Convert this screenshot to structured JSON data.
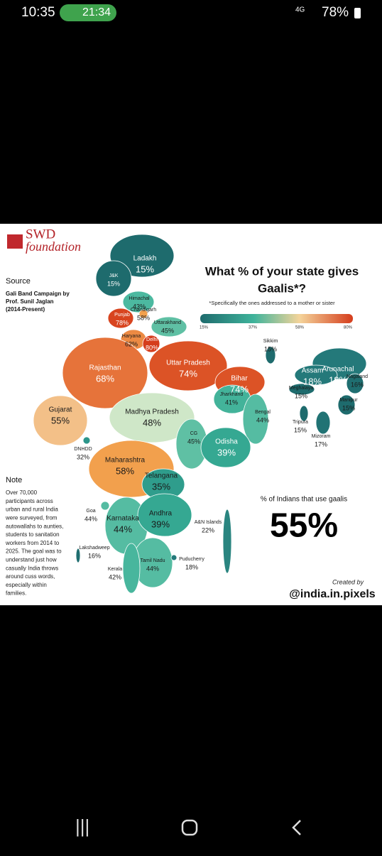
{
  "status_bar": {
    "time": "10:35",
    "call_timer": "21:34",
    "network": "4G",
    "battery": "78%"
  },
  "logo": {
    "name": "SWD",
    "subtitle": "foundation"
  },
  "source": {
    "heading": "Source",
    "lines": [
      "Gali Band Campaign by",
      "Prof. Sunil Jaglan",
      "(2014-Present)"
    ]
  },
  "title_lines": [
    "What % of your state gives",
    "Gaalis*?"
  ],
  "subtitle": "*Specifically the ones addressed to a mother or sister",
  "legend_ticks": [
    "15%",
    "37%",
    "58%",
    "80%"
  ],
  "regions": [
    {
      "name": "Ladakh",
      "value": "15%",
      "color": "#1e6b6d"
    },
    {
      "name": "J&K",
      "value": "15%",
      "color": "#1e6b6d"
    },
    {
      "name": "Himachal",
      "value": "43%",
      "color": "#4cb9a0"
    },
    {
      "name": "Chandigarh",
      "value": "58%",
      "color": "#f2a04d"
    },
    {
      "name": "Punjab",
      "value": "78%",
      "color": "#d8441f"
    },
    {
      "name": "Uttarakhand",
      "value": "45%",
      "color": "#5fc0a4"
    },
    {
      "name": "Haryana",
      "value": "62%",
      "color": "#ec8a43"
    },
    {
      "name": "Delhi",
      "value": "80%",
      "color": "#d53d1c"
    },
    {
      "name": "Rajasthan",
      "value": "68%",
      "color": "#e6733a"
    },
    {
      "name": "Uttar Pradesh",
      "value": "74%",
      "color": "#dc5326"
    },
    {
      "name": "Bihar",
      "value": "74%",
      "color": "#dc5326"
    },
    {
      "name": "Sikkim",
      "value": "15%",
      "color": "#1e6b6d"
    },
    {
      "name": "Arunachal",
      "value": "18%",
      "color": "#24797a"
    },
    {
      "name": "Assam",
      "value": "18%",
      "color": "#24797a"
    },
    {
      "name": "Nagaland",
      "value": "16%",
      "color": "#1f6e70"
    },
    {
      "name": "Meghalaya",
      "value": "15%",
      "color": "#1e6b6d"
    },
    {
      "name": "Manipur",
      "value": "15%",
      "color": "#1e6b6d"
    },
    {
      "name": "Tripura",
      "value": "15%",
      "color": "#1e6b6d"
    },
    {
      "name": "Mizoram",
      "value": "17%",
      "color": "#217374"
    },
    {
      "name": "Gujarat",
      "value": "55%",
      "color": "#f3c088"
    },
    {
      "name": "Madhya Pradesh",
      "value": "48%",
      "color": "#cfe7c8"
    },
    {
      "name": "Jharkhand",
      "value": "41%",
      "color": "#43b39a"
    },
    {
      "name": "Bengal",
      "value": "44%",
      "color": "#55bca2"
    },
    {
      "name": "CG",
      "value": "45%",
      "color": "#5fc0a4"
    },
    {
      "name": "Odisha",
      "value": "39%",
      "color": "#35a892"
    },
    {
      "name": "DNHDD",
      "value": "32%",
      "color": "#2b958a"
    },
    {
      "name": "Maharashtra",
      "value": "58%",
      "color": "#f2a04d"
    },
    {
      "name": "Telangana",
      "value": "35%",
      "color": "#2f9d8c"
    },
    {
      "name": "Goa",
      "value": "44%",
      "color": "#55bca2"
    },
    {
      "name": "Karnataka",
      "value": "44%",
      "color": "#55bca2"
    },
    {
      "name": "Andhra",
      "value": "39%",
      "color": "#35a892"
    },
    {
      "name": "A&N Islands",
      "value": "22%",
      "color": "#2a8580"
    },
    {
      "name": "Lakshadweep",
      "value": "16%",
      "color": "#1f6e70"
    },
    {
      "name": "Tamil Nadu",
      "value": "44%",
      "color": "#55bca2"
    },
    {
      "name": "Puducherry",
      "value": "18%",
      "color": "#24797a"
    },
    {
      "name": "Kerala",
      "value": "42%",
      "color": "#48b69d"
    }
  ],
  "note": {
    "heading": "Note",
    "lines": [
      "Over 70,000",
      "participants across",
      "urban and rural India",
      "were surveyed, from",
      "autowallahs to aunties,",
      "students to sanitation",
      "workers from 2014 to",
      "2025. The goal was to",
      "understand just how",
      "casually India throws",
      "around cuss words,",
      "especially within",
      "families."
    ]
  },
  "summary": {
    "label": "% of Indians that use gaalis",
    "value": "55%"
  },
  "credit": {
    "label": "Created by",
    "handle": "@india.in.pixels"
  }
}
